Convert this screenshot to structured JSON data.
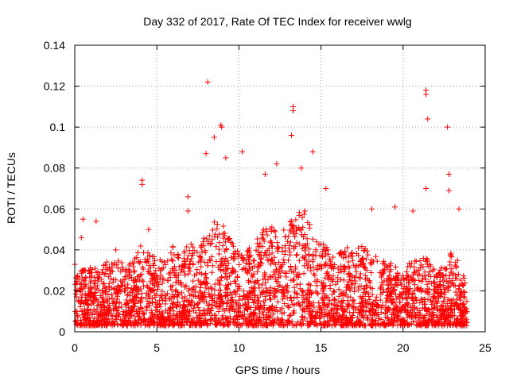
{
  "chart_data": {
    "type": "scatter",
    "title": "Day 332 of 2017, Rate Of TEC Index for receiver wwlg",
    "xlabel": "GPS time / hours",
    "ylabel": "ROTI / TECUs",
    "xlim": [
      0,
      25
    ],
    "ylim": [
      0,
      0.14
    ],
    "xticks": [
      0,
      5,
      10,
      15,
      20,
      25
    ],
    "xtick_labels": [
      "0",
      "5",
      "10",
      "15",
      "20",
      "25"
    ],
    "yticks": [
      0,
      0.02,
      0.04,
      0.06,
      0.08,
      0.1,
      0.12,
      0.14
    ],
    "ytick_labels": [
      "0",
      "0.02",
      "0.04",
      "0.06",
      "0.08",
      "0.1",
      "0.12",
      "0.14"
    ],
    "grid": true,
    "marker": "plus",
    "color": "#ff0000",
    "series": [
      {
        "name": "ROTI",
        "notable_points": [
          {
            "x": 8.1,
            "y": 0.122
          },
          {
            "x": 8.9,
            "y": 0.101
          },
          {
            "x": 8.95,
            "y": 0.1
          },
          {
            "x": 10.2,
            "y": 0.088
          },
          {
            "x": 13.3,
            "y": 0.11
          },
          {
            "x": 13.3,
            "y": 0.108
          },
          {
            "x": 13.2,
            "y": 0.096
          },
          {
            "x": 14.5,
            "y": 0.088
          },
          {
            "x": 21.4,
            "y": 0.118
          },
          {
            "x": 21.4,
            "y": 0.116
          },
          {
            "x": 21.5,
            "y": 0.104
          },
          {
            "x": 22.7,
            "y": 0.1
          },
          {
            "x": 22.8,
            "y": 0.077
          },
          {
            "x": 4.1,
            "y": 0.074
          },
          {
            "x": 4.1,
            "y": 0.072
          },
          {
            "x": 6.9,
            "y": 0.066
          },
          {
            "x": 6.9,
            "y": 0.059
          },
          {
            "x": 8.0,
            "y": 0.087
          },
          {
            "x": 8.5,
            "y": 0.095
          },
          {
            "x": 9.2,
            "y": 0.085
          },
          {
            "x": 11.6,
            "y": 0.077
          },
          {
            "x": 12.3,
            "y": 0.082
          },
          {
            "x": 13.8,
            "y": 0.08
          },
          {
            "x": 15.3,
            "y": 0.07
          },
          {
            "x": 18.1,
            "y": 0.06
          },
          {
            "x": 19.5,
            "y": 0.061
          },
          {
            "x": 20.6,
            "y": 0.059
          },
          {
            "x": 21.4,
            "y": 0.07
          },
          {
            "x": 22.8,
            "y": 0.069
          },
          {
            "x": 23.4,
            "y": 0.06
          },
          {
            "x": 0.5,
            "y": 0.055
          },
          {
            "x": 1.3,
            "y": 0.054
          },
          {
            "x": 4.5,
            "y": 0.05
          },
          {
            "x": 0.4,
            "y": 0.046
          },
          {
            "x": 2.5,
            "y": 0.04
          }
        ],
        "envelope": [
          {
            "x": 0.0,
            "y": 0.036
          },
          {
            "x": 0.5,
            "y": 0.03
          },
          {
            "x": 1.0,
            "y": 0.032
          },
          {
            "x": 1.5,
            "y": 0.03
          },
          {
            "x": 2.0,
            "y": 0.035
          },
          {
            "x": 2.5,
            "y": 0.036
          },
          {
            "x": 3.0,
            "y": 0.033
          },
          {
            "x": 3.5,
            "y": 0.034
          },
          {
            "x": 4.0,
            "y": 0.042
          },
          {
            "x": 4.5,
            "y": 0.04
          },
          {
            "x": 5.0,
            "y": 0.036
          },
          {
            "x": 5.5,
            "y": 0.035
          },
          {
            "x": 6.0,
            "y": 0.042
          },
          {
            "x": 6.5,
            "y": 0.038
          },
          {
            "x": 7.0,
            "y": 0.045
          },
          {
            "x": 7.5,
            "y": 0.04
          },
          {
            "x": 8.0,
            "y": 0.05
          },
          {
            "x": 8.5,
            "y": 0.055
          },
          {
            "x": 9.0,
            "y": 0.055
          },
          {
            "x": 9.5,
            "y": 0.045
          },
          {
            "x": 10.0,
            "y": 0.042
          },
          {
            "x": 10.5,
            "y": 0.04
          },
          {
            "x": 11.0,
            "y": 0.045
          },
          {
            "x": 11.5,
            "y": 0.05
          },
          {
            "x": 12.0,
            "y": 0.052
          },
          {
            "x": 12.5,
            "y": 0.05
          },
          {
            "x": 13.0,
            "y": 0.055
          },
          {
            "x": 13.5,
            "y": 0.058
          },
          {
            "x": 14.0,
            "y": 0.06
          },
          {
            "x": 14.5,
            "y": 0.05
          },
          {
            "x": 15.0,
            "y": 0.045
          },
          {
            "x": 15.5,
            "y": 0.04
          },
          {
            "x": 16.0,
            "y": 0.038
          },
          {
            "x": 16.5,
            "y": 0.042
          },
          {
            "x": 17.0,
            "y": 0.04
          },
          {
            "x": 17.5,
            "y": 0.042
          },
          {
            "x": 18.0,
            "y": 0.04
          },
          {
            "x": 18.5,
            "y": 0.036
          },
          {
            "x": 19.0,
            "y": 0.034
          },
          {
            "x": 19.5,
            "y": 0.033
          },
          {
            "x": 20.0,
            "y": 0.03
          },
          {
            "x": 20.5,
            "y": 0.035
          },
          {
            "x": 21.0,
            "y": 0.036
          },
          {
            "x": 21.5,
            "y": 0.04
          },
          {
            "x": 22.0,
            "y": 0.03
          },
          {
            "x": 22.5,
            "y": 0.032
          },
          {
            "x": 23.0,
            "y": 0.04
          },
          {
            "x": 23.5,
            "y": 0.032
          },
          {
            "x": 23.9,
            "y": 0.026
          }
        ],
        "baseline_min": 0.003,
        "x_range": [
          0.0,
          23.9
        ]
      }
    ]
  }
}
